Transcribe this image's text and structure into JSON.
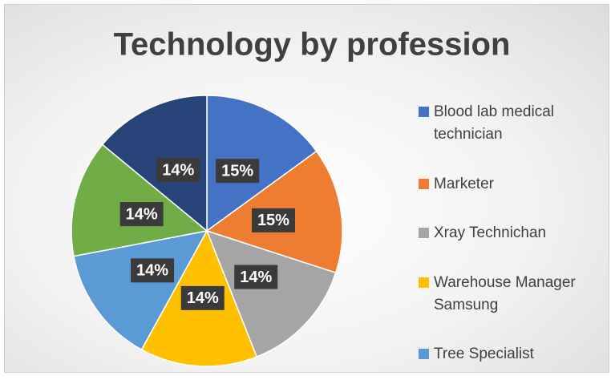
{
  "chart_data": {
    "type": "pie",
    "title": "Technology by profession",
    "categories": [
      "Blood lab medical technician",
      "Marketer",
      "Xray Technichan",
      "Warehouse Manager Samsung",
      "Tree Specialist",
      null,
      null
    ],
    "values": [
      15,
      15,
      14,
      14,
      14,
      14,
      14
    ],
    "value_labels": [
      "15%",
      "15%",
      "14%",
      "14%",
      "14%",
      "14%",
      "14%"
    ],
    "colors": [
      "#4472c4",
      "#ed7d31",
      "#a5a5a5",
      "#ffc000",
      "#5b9bd5",
      "#70ad47",
      "#264478"
    ],
    "legend": "right"
  }
}
